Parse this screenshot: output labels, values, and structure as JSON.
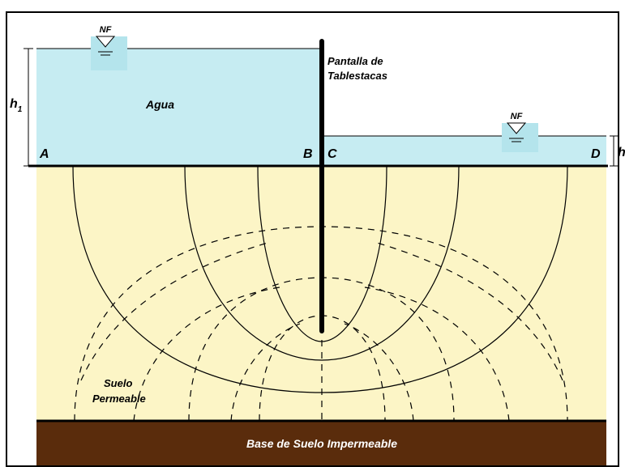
{
  "diagram": {
    "water_left": {
      "level_marker": "NF",
      "label": "Agua",
      "head": {
        "symbol": "h",
        "subscript": "1"
      }
    },
    "water_right": {
      "level_marker": "NF",
      "head": {
        "symbol": "h"
      }
    },
    "sheet_pile": {
      "label_lines": [
        "Pantalla de",
        "Tablestacas"
      ]
    },
    "points": [
      "A",
      "B",
      "C",
      "D"
    ],
    "soil": {
      "label_lines": [
        "Suelo",
        "Permeable"
      ]
    },
    "base": {
      "label": "Base de Suelo Impermeable"
    }
  }
}
